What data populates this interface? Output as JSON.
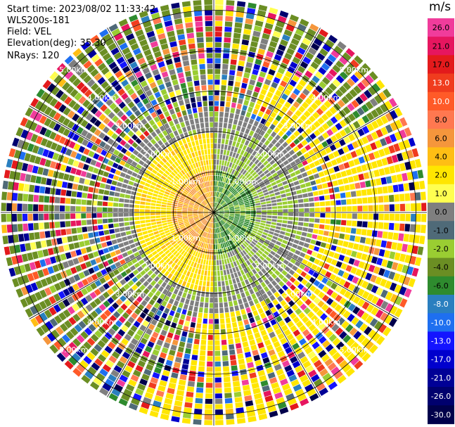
{
  "header": {
    "start_time": "Start time: 2023/08/02 11:33:42",
    "instrument": "WLS200s-181",
    "field": "Field: VEL",
    "elevation": "Elevation(deg): 35.30",
    "nrays": "NRays: 120"
  },
  "chart_data": {
    "type": "heatmap",
    "projection": "polar",
    "field": "VEL",
    "n_rays": 120,
    "grid": true,
    "colorbar": {
      "unit": "m/s",
      "ticks": [
        "26.0",
        "21.0",
        "17.0",
        "13.0",
        "10.0",
        "8.0",
        "6.0",
        "4.0",
        "2.0",
        "1.0",
        "0.0",
        "-1.0",
        "-2.0",
        "-4.0",
        "-6.0",
        "-8.0",
        "-10.0",
        "-13.0",
        "-17.0",
        "-21.0",
        "-26.0",
        "-30.0"
      ],
      "colors": [
        "#f03c9b",
        "#e6165f",
        "#e31a1c",
        "#f03c1e",
        "#ff5a28",
        "#ff7850",
        "#f5963c",
        "#ffbe14",
        "#ffe600",
        "#ffff50",
        "#7f7f7f",
        "#4f6a78",
        "#9acd32",
        "#6b8e23",
        "#2e8b2e",
        "#2a7fbf",
        "#1e6ff0",
        "#1414ff",
        "#0000cd",
        "#000096",
        "#00006e",
        "#00004b"
      ]
    },
    "range_rings_km": [
      "1.00km",
      "2.00km",
      "3.00km",
      "4.00km",
      "5.00km"
    ],
    "data_summary": {
      "near_range_km": 1.0,
      "near_range_dominant": "weak positive (yellow/orange) on the west half, negative (green) on the east half",
      "far_range_dominant": "noise / mixed values with many colors"
    }
  }
}
